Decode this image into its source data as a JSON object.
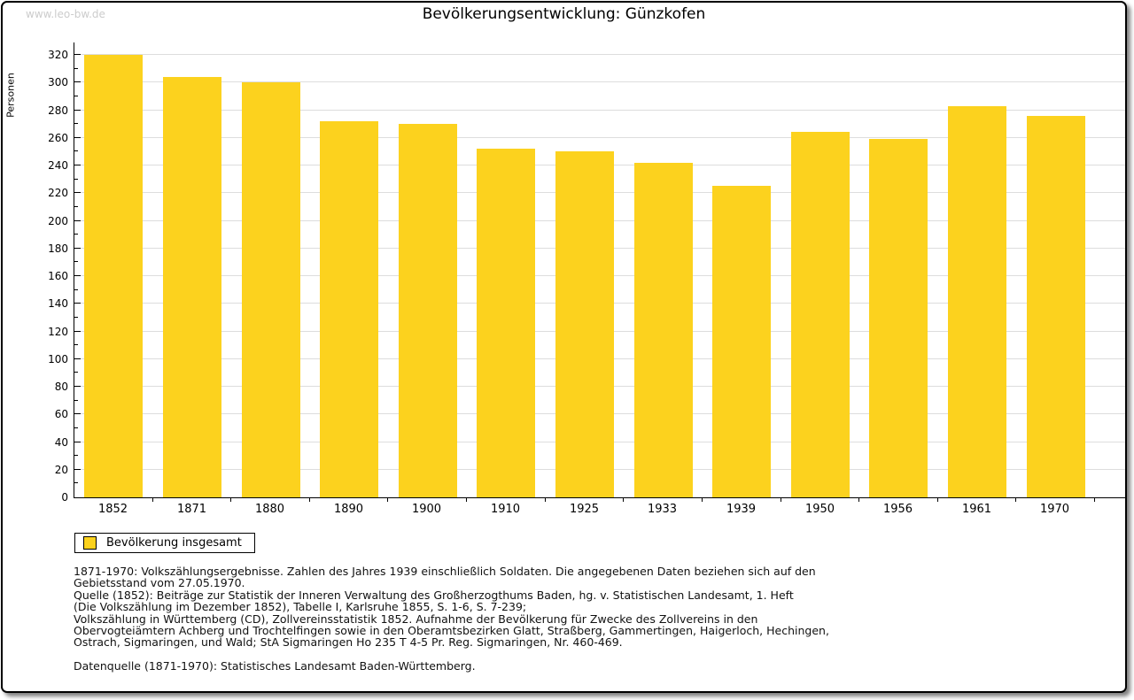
{
  "watermark": "www.leo-bw.de",
  "header": {
    "title": "Bevölkerungsentwicklung: Günzkofen"
  },
  "chart_data": {
    "type": "bar",
    "title": "Bevölkerungsentwicklung: Günzkofen",
    "xlabel": "",
    "ylabel": "Personen",
    "categories": [
      "1852",
      "1871",
      "1880",
      "1890",
      "1900",
      "1910",
      "1925",
      "1933",
      "1939",
      "1950",
      "1956",
      "1961",
      "1970"
    ],
    "values": [
      320,
      304,
      300,
      272,
      270,
      252,
      250,
      242,
      225,
      264,
      259,
      283,
      276
    ],
    "series_name": "Bevölkerung insgesamt",
    "ylim": [
      0,
      320
    ],
    "ytick_step": 20,
    "yminor_step": 10,
    "grid": true,
    "legend_position": "bottom-left"
  },
  "legend": {
    "label": "Bevölkerung insgesamt"
  },
  "footnotes": [
    "1871-1970: Volkszählungsergebnisse. Zahlen des Jahres 1939 einschließlich Soldaten. Die angegebenen Daten beziehen sich auf den",
    "Gebietsstand vom 27.05.1970.",
    "Quelle (1852): Beiträge zur Statistik der Inneren Verwaltung des Großherzogthums Baden, hg. v. Statistischen Landesamt, 1. Heft",
    "(Die Volkszählung im Dezember 1852), Tabelle I, Karlsruhe 1855, S. 1-6, S. 7-239;",
    "Volkszählung in Württemberg (CD), Zollvereinsstatistik 1852. Aufnahme der Bevölkerung für Zwecke des Zollvereins in den",
    "Obervogteiämtern Achberg und Trochtelfingen sowie in den Oberamtsbezirken Glatt, Straßberg, Gammertingen, Haigerloch, Hechingen,",
    "Ostrach, Sigmaringen, und Wald; StA Sigmaringen Ho 235 T 4-5 Pr. Reg. Sigmaringen, Nr. 460-469.",
    "Datenquelle (1871-1970): Statistisches Landesamt Baden-Württemberg."
  ],
  "colors": {
    "bar": "#FCD21E",
    "gridline": "#DDDDDD",
    "axis": "#000000",
    "watermark": "#CCCCCC",
    "text": "#111111"
  }
}
